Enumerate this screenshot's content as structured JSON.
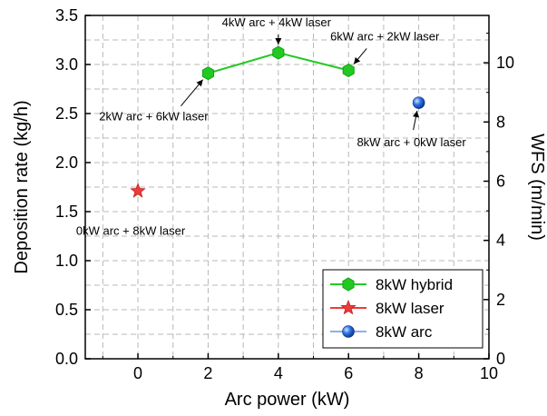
{
  "chart_data": {
    "type": "scatter",
    "title": "",
    "xlabel": "Arc power (kW)",
    "ylabel": "Deposition rate (kg/h)",
    "y2label": "WFS (m/min)",
    "xlim": [
      -1.5,
      10
    ],
    "ylim": [
      0,
      3.5
    ],
    "y2lim": [
      0,
      11.6
    ],
    "xticks": [
      0,
      2,
      4,
      6,
      8,
      10
    ],
    "xtick_labels": [
      "0",
      "2",
      "4",
      "6",
      "8",
      "10"
    ],
    "yticks": [
      0,
      0.5,
      1.0,
      1.5,
      2.0,
      2.5,
      3.0,
      3.5
    ],
    "ytick_labels": [
      "0.0",
      "0.5",
      "1.0",
      "1.5",
      "2.0",
      "2.5",
      "3.0",
      "3.5"
    ],
    "y2ticks": [
      0,
      2,
      4,
      6,
      8,
      10
    ],
    "y2tick_labels": [
      "0",
      "2",
      "4",
      "6",
      "8",
      "10"
    ],
    "grid": true,
    "legend_position": "bottom-right",
    "series": [
      {
        "name": "8kW hybrid",
        "marker": "hexagon",
        "line": true,
        "color": "#22c922",
        "x": [
          2,
          4,
          6
        ],
        "y": [
          2.91,
          3.12,
          2.94
        ]
      },
      {
        "name": "8kW laser",
        "marker": "star",
        "line": false,
        "color": "#ee3b3b",
        "x": [
          0
        ],
        "y": [
          1.71
        ]
      },
      {
        "name": "8kW arc",
        "marker": "sphere",
        "line": false,
        "color": "#1f5fd6",
        "x": [
          8
        ],
        "y": [
          2.61
        ]
      }
    ],
    "annotations": [
      {
        "text": "2kW arc + 6kW laser",
        "x": 2,
        "y": 2.91,
        "label_pos": "below-left"
      },
      {
        "text": "4kW arc + 4kW laser",
        "x": 4,
        "y": 3.12,
        "label_pos": "above"
      },
      {
        "text": "6kW arc + 2kW laser",
        "x": 6,
        "y": 2.94,
        "label_pos": "above-right"
      },
      {
        "text": "8kW arc + 0kW laser",
        "x": 8,
        "y": 2.61,
        "label_pos": "below"
      },
      {
        "text": "0kW arc + 8kW laser",
        "x": 0,
        "y": 1.71,
        "label_pos": "below"
      }
    ]
  }
}
